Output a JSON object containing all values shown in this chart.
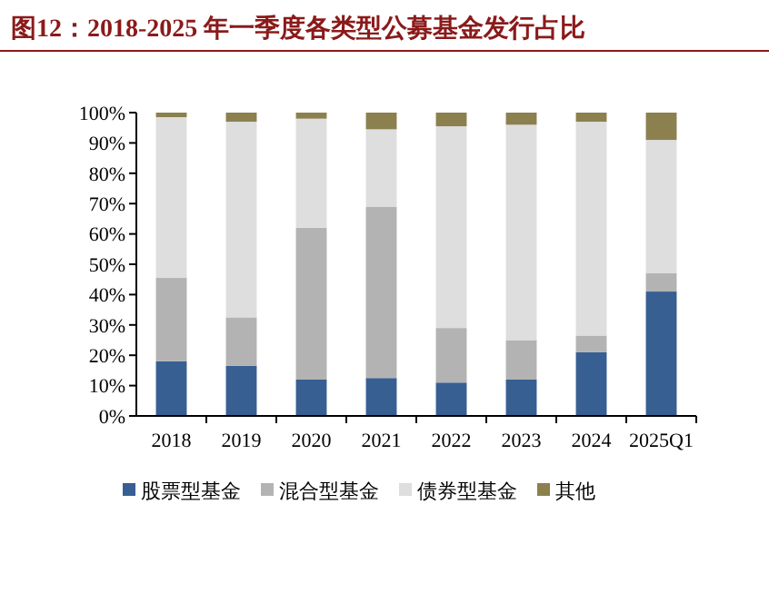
{
  "chart_data": {
    "type": "bar",
    "stacked": true,
    "title": "图12：2018-2025 年一季度各类型公募基金发行占比",
    "categories": [
      "2018",
      "2019",
      "2020",
      "2021",
      "2022",
      "2023",
      "2024",
      "2025Q1"
    ],
    "series": [
      {
        "name": "股票型基金",
        "color": "#375f92",
        "values": [
          18,
          16.5,
          12,
          12.5,
          11,
          12,
          21,
          41
        ]
      },
      {
        "name": "混合型基金",
        "color": "#b3b3b3",
        "values": [
          27.5,
          16,
          50,
          56.5,
          18,
          13,
          5.5,
          6
        ]
      },
      {
        "name": "债券型基金",
        "color": "#dedede",
        "values": [
          53,
          64.5,
          36,
          25.5,
          66.5,
          71,
          70.5,
          44
        ]
      },
      {
        "name": "其他",
        "color": "#8c804f",
        "values": [
          1.5,
          3,
          2,
          5.5,
          4.5,
          4,
          3,
          9
        ]
      }
    ],
    "ylim": [
      0,
      100
    ],
    "yticks": [
      {
        "value": 0,
        "label": "0%"
      },
      {
        "value": 10,
        "label": "10%"
      },
      {
        "value": 20,
        "label": "20%"
      },
      {
        "value": 30,
        "label": "30%"
      },
      {
        "value": 40,
        "label": "40%"
      },
      {
        "value": 50,
        "label": "50%"
      },
      {
        "value": 60,
        "label": "60%"
      },
      {
        "value": 70,
        "label": "70%"
      },
      {
        "value": 80,
        "label": "80%"
      },
      {
        "value": 90,
        "label": "90%"
      },
      {
        "value": 100,
        "label": "100%"
      }
    ],
    "grid": false,
    "legend": "bottom"
  }
}
